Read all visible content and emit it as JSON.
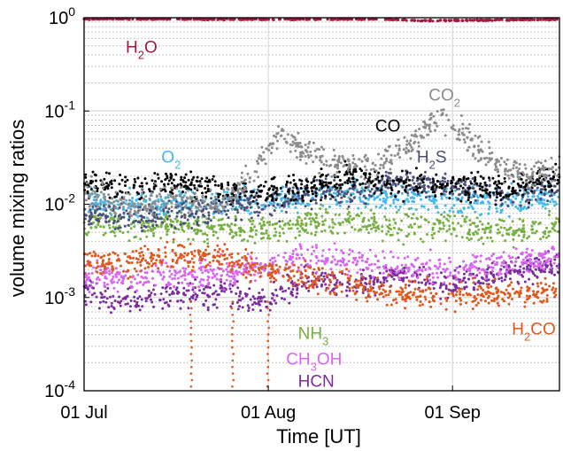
{
  "chart_data": {
    "type": "scatter",
    "xlabel": "Time [UT]",
    "ylabel": "volume mixing ratios",
    "yscale": "log",
    "ylim": [
      0.0001,
      1
    ],
    "xlim": [
      "2015-07-01",
      "2015-09-19"
    ],
    "grid": "on",
    "legend": "none",
    "x_ticks": [
      {
        "date": "2015-07-01",
        "label": "01 Jul"
      },
      {
        "date": "2015-08-01",
        "label": "01 Aug"
      },
      {
        "date": "2015-09-01",
        "label": "01 Sep"
      }
    ],
    "y_ticks": [
      {
        "value": 0.0001,
        "base": "10",
        "exp": "-4"
      },
      {
        "value": 0.001,
        "base": "10",
        "exp": "-3"
      },
      {
        "value": 0.01,
        "base": "10",
        "exp": "-2"
      },
      {
        "value": 0.1,
        "base": "10",
        "exp": "-1"
      },
      {
        "value": 1,
        "base": "10",
        "exp": "0"
      }
    ],
    "series": [
      {
        "key": "HCN",
        "label": "HCN",
        "parts": [
          [
            "HCN",
            ""
          ]
        ],
        "color": "#7B2D9C",
        "label_at": [
          "2015-08-06",
          0.00011
        ],
        "profile": [
          [
            "2015-07-01",
            0.0012
          ],
          [
            "2015-07-08",
            0.0009
          ],
          [
            "2015-07-16",
            0.001
          ],
          [
            "2015-07-24",
            0.0011
          ],
          [
            "2015-08-01",
            0.0009
          ],
          [
            "2015-08-08",
            0.0016
          ],
          [
            "2015-08-15",
            0.0013
          ],
          [
            "2015-08-22",
            0.0017
          ],
          [
            "2015-09-01",
            0.0014
          ],
          [
            "2015-09-10",
            0.002
          ],
          [
            "2015-09-19",
            0.0022
          ]
        ]
      },
      {
        "key": "CH3OH",
        "label": "CH3OH",
        "parts": [
          [
            "CH",
            ""
          ],
          [
            "3",
            "sub"
          ],
          [
            "OH",
            ""
          ]
        ],
        "color": "#D966F2",
        "label_at": [
          "2015-08-04",
          0.00019
        ],
        "profile": [
          [
            "2015-07-01",
            0.0017
          ],
          [
            "2015-07-08",
            0.0016
          ],
          [
            "2015-07-16",
            0.0017
          ],
          [
            "2015-07-24",
            0.0018
          ],
          [
            "2015-08-01",
            0.0022
          ],
          [
            "2015-08-08",
            0.0028
          ],
          [
            "2015-08-15",
            0.0024
          ],
          [
            "2015-08-22",
            0.0022
          ],
          [
            "2015-09-01",
            0.002
          ],
          [
            "2015-09-10",
            0.0024
          ],
          [
            "2015-09-19",
            0.0026
          ]
        ]
      },
      {
        "key": "NH3",
        "label": "NH3",
        "parts": [
          [
            "NH",
            ""
          ],
          [
            "3",
            "sub"
          ]
        ],
        "color": "#76B041",
        "label_at": [
          "2015-08-06",
          0.00036
        ],
        "profile": [
          [
            "2015-07-01",
            0.0065
          ],
          [
            "2015-07-08",
            0.0055
          ],
          [
            "2015-07-16",
            0.006
          ],
          [
            "2015-07-24",
            0.0055
          ],
          [
            "2015-08-01",
            0.0055
          ],
          [
            "2015-08-08",
            0.006
          ],
          [
            "2015-08-15",
            0.007
          ],
          [
            "2015-08-22",
            0.0055
          ],
          [
            "2015-09-01",
            0.006
          ],
          [
            "2015-09-10",
            0.005
          ],
          [
            "2015-09-19",
            0.006
          ]
        ]
      },
      {
        "key": "H2CO",
        "label": "H2CO",
        "parts": [
          [
            "H",
            ""
          ],
          [
            "2",
            "sub"
          ],
          [
            "CO",
            ""
          ]
        ],
        "color": "#E0581E",
        "label_at": [
          "2015-09-11",
          0.0004
        ],
        "profile": [
          [
            "2015-07-01",
            0.0025
          ],
          [
            "2015-07-08",
            0.0023
          ],
          [
            "2015-07-16",
            0.0028
          ],
          [
            "2015-07-24",
            0.0027
          ],
          [
            "2015-08-01",
            0.002
          ],
          [
            "2015-08-08",
            0.0016
          ],
          [
            "2015-08-15",
            0.0014
          ],
          [
            "2015-08-22",
            0.0011
          ],
          [
            "2015-09-01",
            0.001
          ],
          [
            "2015-09-10",
            0.0011
          ],
          [
            "2015-09-19",
            0.0012
          ]
        ]
      },
      {
        "key": "O2",
        "label": "O2",
        "parts": [
          [
            "O",
            ""
          ],
          [
            "2",
            "sub"
          ]
        ],
        "color": "#44B8EA",
        "label_at": [
          "2015-07-14",
          0.028
        ],
        "profile": [
          [
            "2015-07-01",
            0.011
          ],
          [
            "2015-07-08",
            0.0095
          ],
          [
            "2015-07-16",
            0.01
          ],
          [
            "2015-07-24",
            0.011
          ],
          [
            "2015-08-01",
            0.011
          ],
          [
            "2015-08-08",
            0.012
          ],
          [
            "2015-08-15",
            0.013
          ],
          [
            "2015-08-22",
            0.012
          ],
          [
            "2015-09-01",
            0.011
          ],
          [
            "2015-09-10",
            0.011
          ],
          [
            "2015-09-19",
            0.012
          ]
        ]
      },
      {
        "key": "H2S",
        "label": "H2S",
        "parts": [
          [
            "H",
            ""
          ],
          [
            "2",
            "sub"
          ],
          [
            "S",
            ""
          ]
        ],
        "color": "#4A5078",
        "label_at": [
          "2015-08-26",
          0.028
        ],
        "profile": [
          [
            "2015-07-01",
            0.008
          ],
          [
            "2015-07-08",
            0.007
          ],
          [
            "2015-07-16",
            0.008
          ],
          [
            "2015-07-24",
            0.009
          ],
          [
            "2015-08-01",
            0.01
          ],
          [
            "2015-08-08",
            0.014
          ],
          [
            "2015-08-15",
            0.013
          ],
          [
            "2015-08-22",
            0.018
          ],
          [
            "2015-09-01",
            0.016
          ],
          [
            "2015-09-10",
            0.012
          ],
          [
            "2015-09-19",
            0.016
          ]
        ]
      },
      {
        "key": "CO",
        "label": "CO",
        "parts": [
          [
            "CO",
            ""
          ]
        ],
        "color": "#000000",
        "label_at": [
          "2015-08-19",
          0.06
        ],
        "profile": [
          [
            "2015-07-01",
            0.017
          ],
          [
            "2015-07-08",
            0.015
          ],
          [
            "2015-07-16",
            0.017
          ],
          [
            "2015-07-24",
            0.014
          ],
          [
            "2015-08-01",
            0.014
          ],
          [
            "2015-08-08",
            0.015
          ],
          [
            "2015-08-15",
            0.02
          ],
          [
            "2015-08-22",
            0.017
          ],
          [
            "2015-09-01",
            0.016
          ],
          [
            "2015-09-10",
            0.015
          ],
          [
            "2015-09-19",
            0.02
          ]
        ]
      },
      {
        "key": "CO2",
        "label": "CO2",
        "parts": [
          [
            "CO",
            ""
          ],
          [
            "2",
            "sub"
          ]
        ],
        "color": "#8C8C8C",
        "label_at": [
          "2015-08-28",
          0.13
        ],
        "profile": [
          [
            "2015-07-01",
            0.014
          ],
          [
            "2015-07-08",
            0.01
          ],
          [
            "2015-07-16",
            0.012
          ],
          [
            "2015-07-24",
            0.01
          ],
          [
            "2015-07-29",
            0.02
          ],
          [
            "2015-08-03",
            0.055
          ],
          [
            "2015-08-10",
            0.03
          ],
          [
            "2015-08-18",
            0.024
          ],
          [
            "2015-08-25",
            0.045
          ],
          [
            "2015-08-30",
            0.09
          ],
          [
            "2015-09-05",
            0.04
          ],
          [
            "2015-09-12",
            0.02
          ],
          [
            "2015-09-19",
            0.025
          ]
        ]
      },
      {
        "key": "H2O",
        "label": "H2O",
        "parts": [
          [
            "H",
            ""
          ],
          [
            "2",
            "sub"
          ],
          [
            "O",
            ""
          ]
        ],
        "color": "#A3193F",
        "label_at": [
          "2015-07-08",
          0.42
        ],
        "profile": [
          [
            "2015-07-01",
            0.97
          ],
          [
            "2015-08-01",
            0.96
          ],
          [
            "2015-08-20",
            0.97
          ],
          [
            "2015-08-27",
            0.93
          ],
          [
            "2015-09-19",
            0.96
          ]
        ]
      }
    ]
  }
}
